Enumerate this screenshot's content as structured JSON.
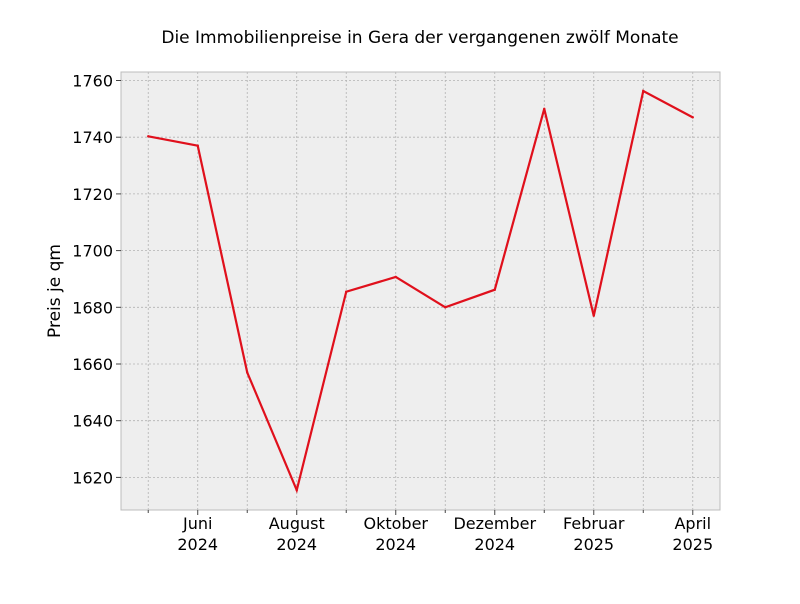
{
  "chart_data": {
    "type": "line",
    "title": "Die Immobilienpreise in Gera der vergangenen zwölf Monate",
    "xlabel": "",
    "ylabel": "Preis je qm",
    "x": [
      "2024-05",
      "2024-06",
      "2024-07",
      "2024-08",
      "2024-09",
      "2024-10",
      "2024-11",
      "2024-12",
      "2025-01",
      "2025-02",
      "2025-03",
      "2025-04"
    ],
    "x_tick_labels": [
      {
        "x": "2024-06",
        "month": "Juni",
        "year": "2024"
      },
      {
        "x": "2024-08",
        "month": "August",
        "year": "2024"
      },
      {
        "x": "2024-10",
        "month": "Oktober",
        "year": "2024"
      },
      {
        "x": "2024-12",
        "month": "Dezember",
        "year": "2024"
      },
      {
        "x": "2025-02",
        "month": "Februar",
        "year": "2025"
      },
      {
        "x": "2025-04",
        "month": "April",
        "year": "2025"
      }
    ],
    "y_ticks": [
      1620,
      1640,
      1660,
      1680,
      1700,
      1720,
      1740,
      1760
    ],
    "ylim": [
      1608.5,
      1763
    ],
    "series": [
      {
        "values": [
          1740.3,
          1737.0,
          1657.0,
          1615.5,
          1685.5,
          1690.7,
          1680.0,
          1686.2,
          1750.0,
          1677.0,
          1756.3,
          1747.0
        ],
        "color": "#e0101c"
      }
    ],
    "grid": true,
    "legend": "none",
    "colors": {
      "plot_background": "#eeeeee",
      "grid": "#b2b2b2",
      "axes_edge": "#bcbcbc"
    }
  }
}
